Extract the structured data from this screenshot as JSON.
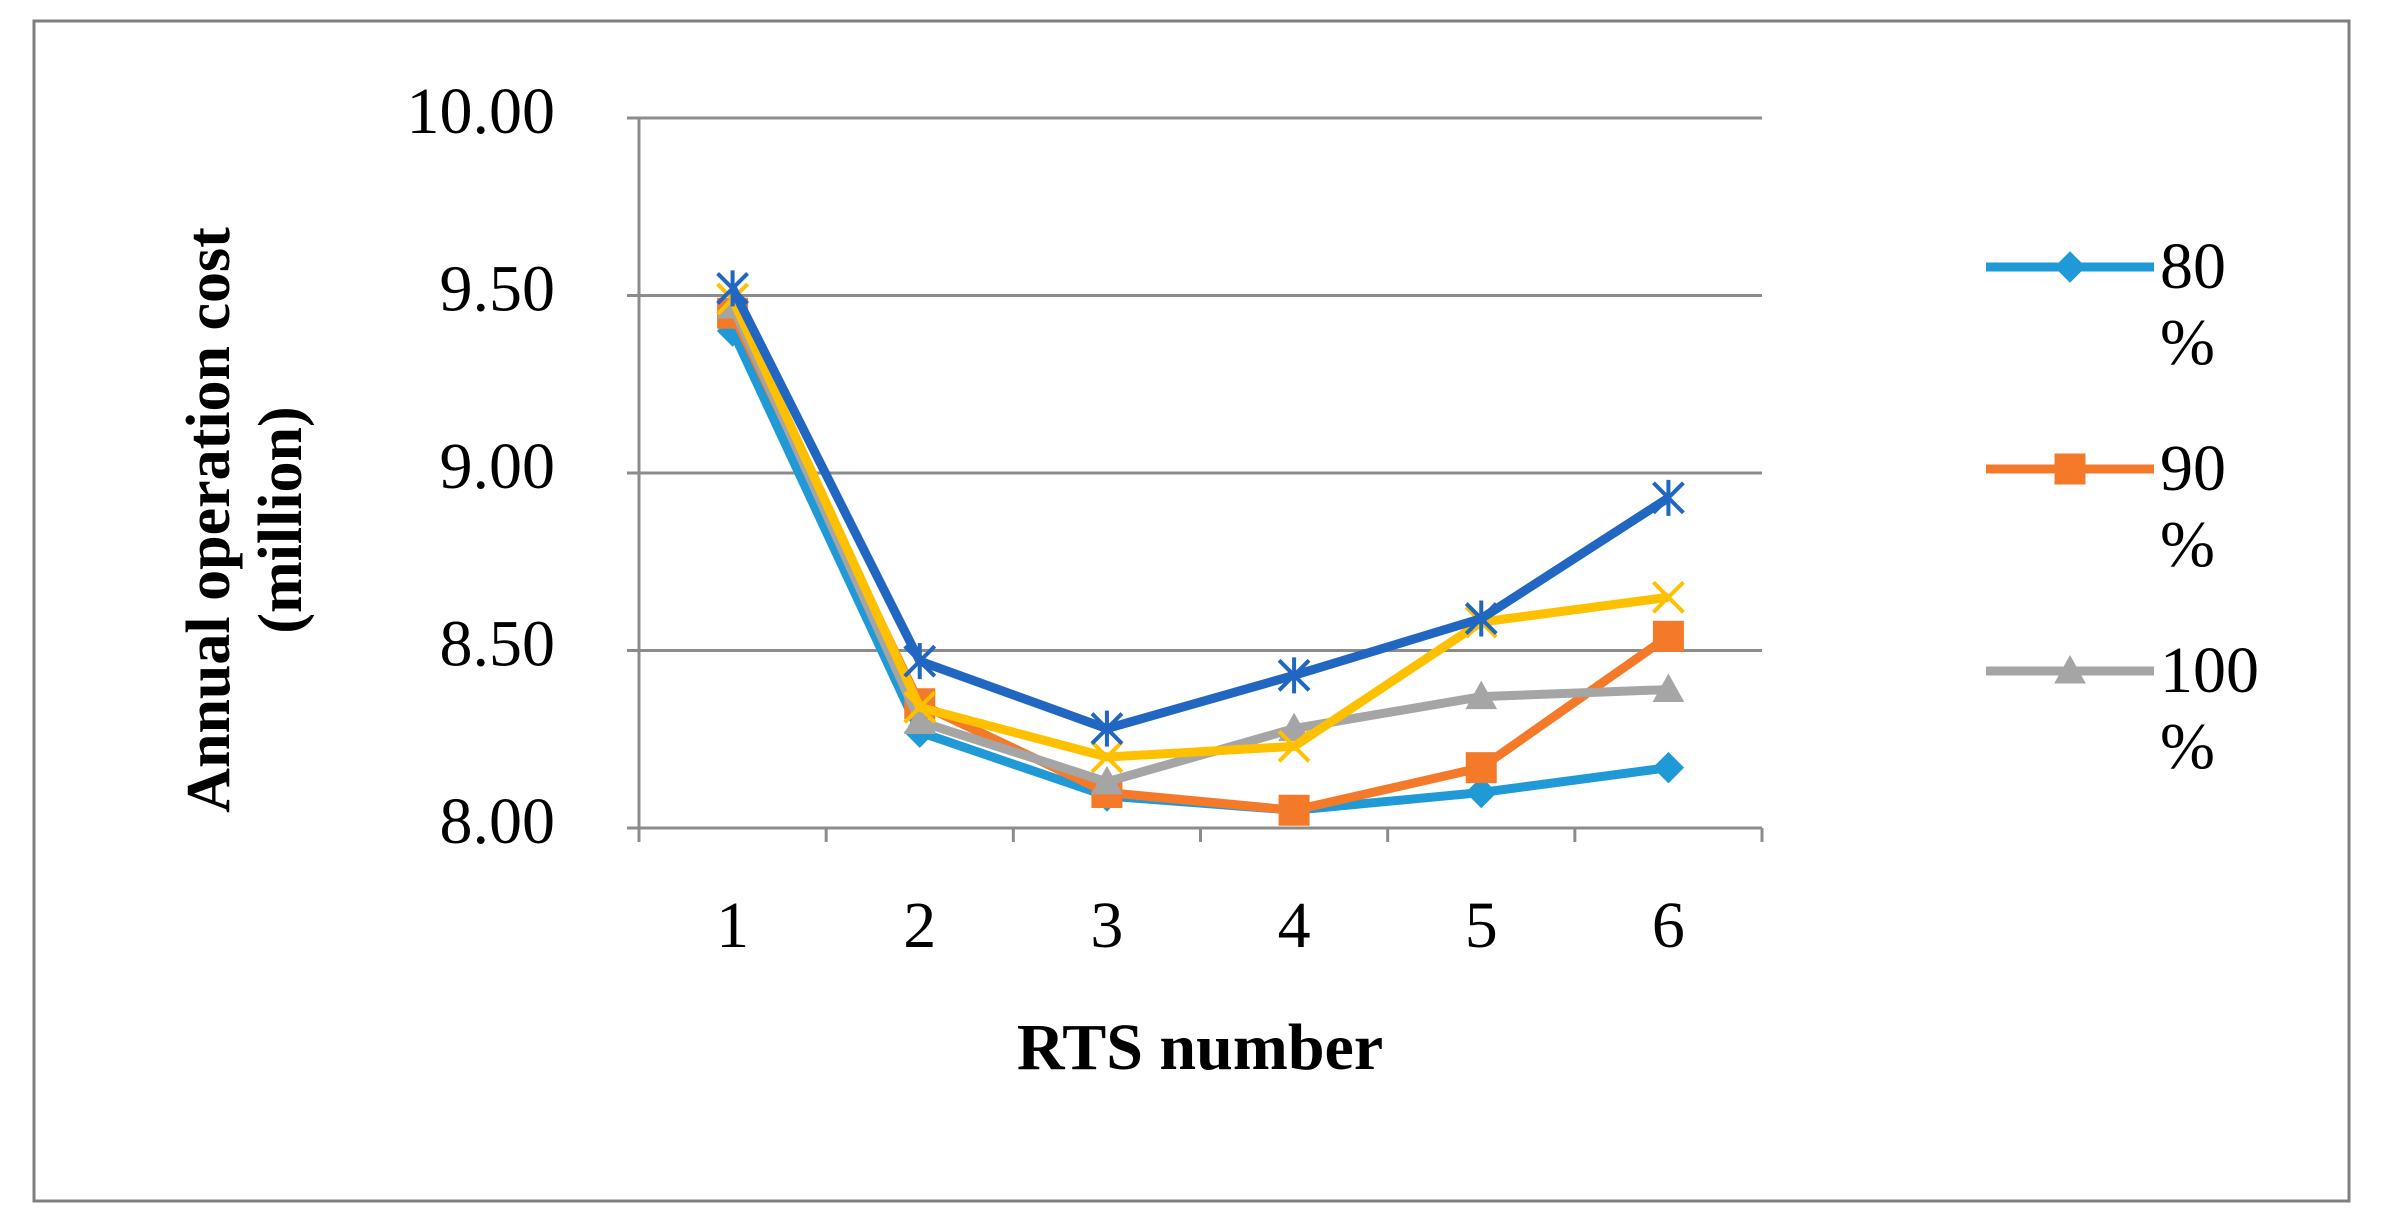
{
  "chart_data": {
    "type": "line",
    "x_label": "RTS number",
    "y_label": "Annual operation cost (million)",
    "categories": [
      "1",
      "2",
      "3",
      "4",
      "5",
      "6"
    ],
    "ylim": [
      8,
      10
    ],
    "yticks": [
      {
        "value": 8,
        "label": "8.00"
      },
      {
        "value": 8.5,
        "label": "8.50"
      },
      {
        "value": 9,
        "label": "9.00"
      },
      {
        "value": 9.5,
        "label": "9.50"
      },
      {
        "value": 10,
        "label": "10.00"
      }
    ],
    "grid": true,
    "legend": "right",
    "series": [
      {
        "name": "80 %",
        "color": "#1f9ad6",
        "marker": "diamond",
        "values": [
          9.4,
          8.27,
          8.09,
          8.05,
          8.1,
          8.17
        ]
      },
      {
        "name": "90 %",
        "color": "#f47a2a",
        "marker": "square",
        "values": [
          9.45,
          8.35,
          8.1,
          8.05,
          8.17,
          8.54
        ]
      },
      {
        "name": "100 %",
        "color": "#a5a5a5",
        "marker": "triangle",
        "values": [
          9.47,
          8.3,
          8.13,
          8.28,
          8.37,
          8.39
        ]
      },
      {
        "color": "#ffc000",
        "marker": "x",
        "values": [
          9.49,
          8.34,
          8.2,
          8.23,
          8.58,
          8.65
        ]
      },
      {
        "color": "#2166c0",
        "marker": "star",
        "values": [
          9.52,
          8.47,
          8.28,
          8.43,
          8.59,
          8.93
        ]
      }
    ]
  }
}
